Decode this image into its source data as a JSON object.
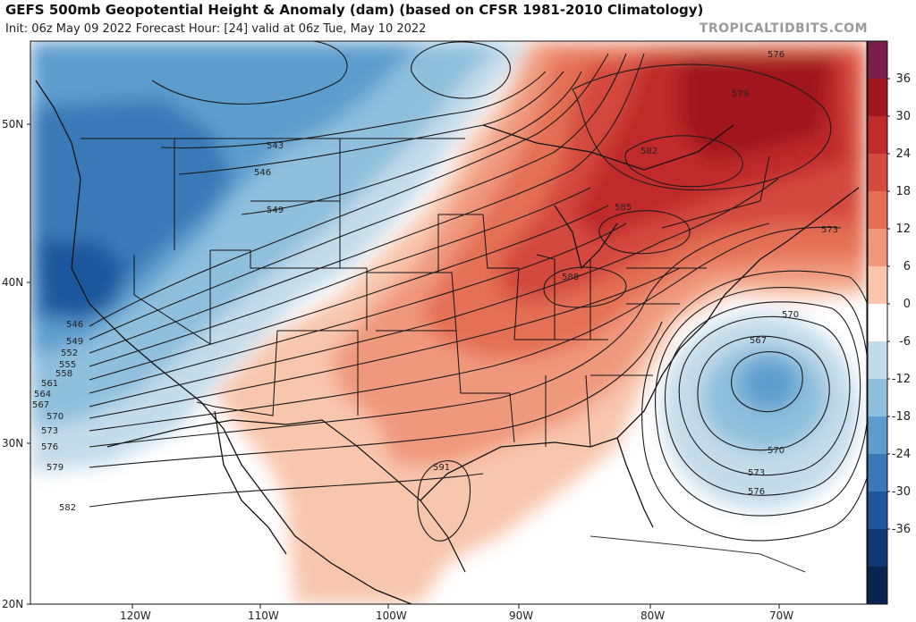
{
  "header": {
    "title": "GEFS 500mb Geopotential Height & Anomaly (dam) (based on CFSR 1981-2010 Climatology)",
    "subtitle": "Init: 06z May 09 2022   Forecast Hour: [24]   valid at 06z Tue, May 10 2022",
    "credit": "TROPICALTIDBITS.COM"
  },
  "axes": {
    "lat_labels": [
      "50N",
      "40N",
      "30N",
      "20N"
    ],
    "lon_labels": [
      "120W",
      "110W",
      "100W",
      "90W",
      "80W",
      "70W"
    ]
  },
  "colorbar": {
    "labels": [
      "36",
      "30",
      "24",
      "18",
      "12",
      "6",
      "0",
      "-6",
      "-12",
      "-18",
      "-24",
      "-30",
      "-36"
    ],
    "colors": [
      "#7a1f4a",
      "#a0161e",
      "#c02a2a",
      "#d44a3e",
      "#e46f55",
      "#f0987c",
      "#f8c6ad",
      "#ffffff",
      "#c4dcea",
      "#8ebfdd",
      "#5d9dcd",
      "#3a78b8",
      "#1f569c",
      "#0f3a76",
      "#08244f"
    ]
  },
  "contour_labels": [
    "543",
    "546",
    "549",
    "546",
    "549",
    "552",
    "555",
    "558",
    "561",
    "564",
    "567",
    "570",
    "573",
    "576",
    "579",
    "582",
    "588",
    "585",
    "582",
    "579",
    "576",
    "573",
    "591",
    "570",
    "567",
    "570",
    "573",
    "576"
  ]
}
